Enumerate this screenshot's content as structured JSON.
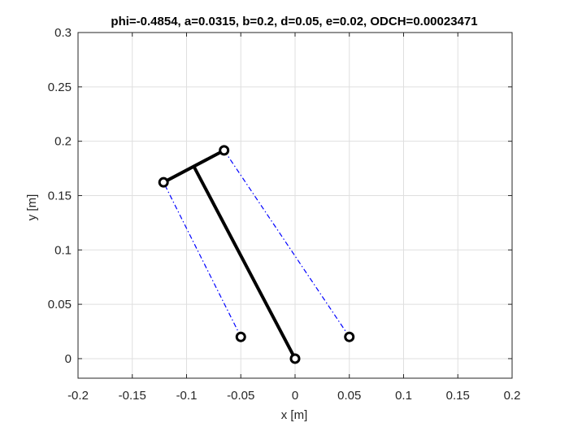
{
  "chart_data": {
    "type": "line",
    "title": "phi=-0.4854, a=0.0315, b=0.2, d=0.05, e=0.02, ODCH=0.00023471",
    "xlabel": "x [m]",
    "ylabel": "y [m]",
    "xlim": [
      -0.2,
      0.2
    ],
    "ylim": [
      -0.018,
      0.3
    ],
    "grid": true,
    "x_ticks": [
      -0.2,
      -0.15,
      -0.1,
      -0.05,
      0,
      0.05,
      0.1,
      0.15,
      0.2
    ],
    "x_tick_labels": [
      "-0.2",
      "-0.15",
      "-0.1",
      "-0.05",
      "0",
      "0.05",
      "0.1",
      "0.15",
      "0.2"
    ],
    "y_ticks": [
      0,
      0.05,
      0.1,
      0.15,
      0.2,
      0.25,
      0.3
    ],
    "y_tick_labels": [
      "0",
      "0.05",
      "0.1",
      "0.15",
      "0.2",
      "0.25",
      "0.3"
    ],
    "series": [
      {
        "style": "solid",
        "color": "#000000",
        "values": [
          [
            0,
            0
          ],
          [
            -0.0933,
            0.1769
          ]
        ]
      },
      {
        "style": "solid",
        "color": "#000000",
        "values": [
          [
            -0.1212,
            0.1622
          ],
          [
            -0.0654,
            0.1916
          ]
        ]
      },
      {
        "style": "dash-dot",
        "color": "#0000ff",
        "values": [
          [
            -0.05,
            0.02
          ],
          [
            -0.1212,
            0.1622
          ]
        ]
      },
      {
        "style": "dash-dot",
        "color": "#0000ff",
        "values": [
          [
            0.05,
            0.02
          ],
          [
            -0.0654,
            0.1916
          ]
        ]
      }
    ],
    "markers": [
      {
        "x": -0.1212,
        "y": 0.1622,
        "style": "circle",
        "color": "#000000"
      },
      {
        "x": -0.0654,
        "y": 0.1916,
        "style": "circle",
        "color": "#000000"
      },
      {
        "x": -0.05,
        "y": 0.02,
        "style": "circle",
        "color": "#000000"
      },
      {
        "x": 0.05,
        "y": 0.02,
        "style": "circle",
        "color": "#000000"
      },
      {
        "x": 0,
        "y": 0,
        "style": "circle",
        "color": "#000000"
      }
    ]
  }
}
